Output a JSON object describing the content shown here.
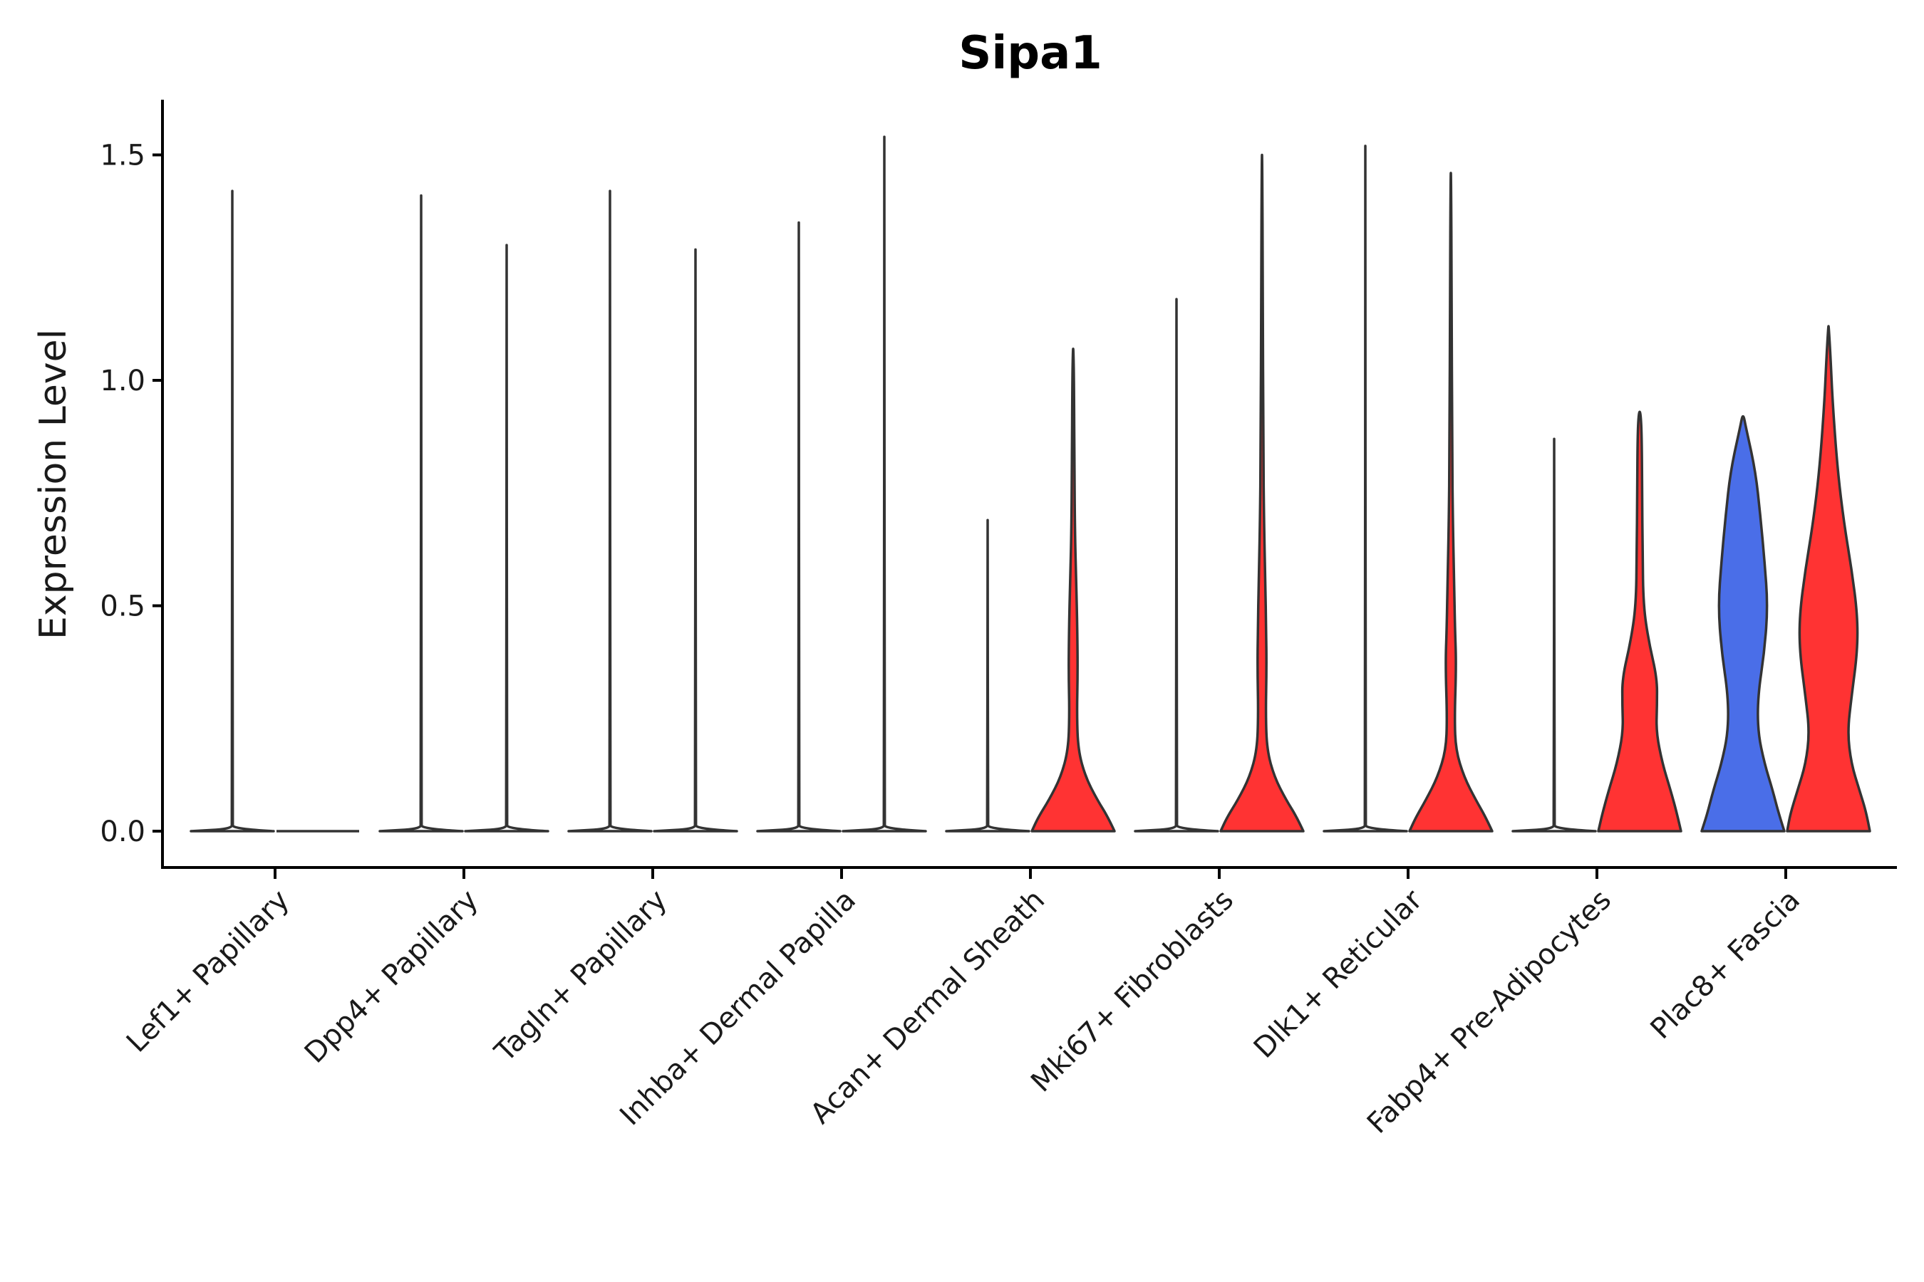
{
  "chart_data": {
    "type": "violin",
    "title": "Sipa1",
    "xlabel": "",
    "ylabel": "Expression Level",
    "ylim": [
      -0.08,
      1.62
    ],
    "yticks": [
      0.0,
      0.5,
      1.0,
      1.5
    ],
    "ytick_labels": [
      "0.0",
      "0.5",
      "1.0",
      "1.5"
    ],
    "colors": {
      "blue": "#4a6ee8",
      "red": "#ff3333",
      "outline": "#333333"
    },
    "categories": [
      "Lef1+ Papillary",
      "Dpp4+ Papillary",
      "Tagln+ Papillary",
      "Inhba+ Dermal Papilla",
      "Acan+ Dermal Sheath",
      "Mki67+ Fibroblasts",
      "Dlk1+ Reticular",
      "Fabp4+ Pre-Adipocytes",
      "Plac8+ Fascia"
    ],
    "groups": [
      "left",
      "right"
    ],
    "violins": [
      {
        "category": 0,
        "group": "left",
        "max": 1.42,
        "fill": "none",
        "profile": [
          [
            0,
            1
          ],
          [
            0.005,
            0.02
          ],
          [
            0.02,
            0.004
          ],
          [
            1.42,
            0.004
          ]
        ]
      },
      {
        "category": 0,
        "group": "right",
        "max": 0.0,
        "fill": "none",
        "profile": []
      },
      {
        "category": 1,
        "group": "left",
        "max": 1.41,
        "fill": "none",
        "profile": [
          [
            0,
            1
          ],
          [
            0.005,
            0.02
          ],
          [
            0.02,
            0.004
          ],
          [
            1.41,
            0.004
          ]
        ]
      },
      {
        "category": 1,
        "group": "right",
        "max": 1.3,
        "fill": "none",
        "profile": [
          [
            0,
            1
          ],
          [
            0.005,
            0.02
          ],
          [
            0.02,
            0.004
          ],
          [
            1.3,
            0.004
          ]
        ]
      },
      {
        "category": 2,
        "group": "left",
        "max": 1.42,
        "fill": "none",
        "profile": [
          [
            0,
            1
          ],
          [
            0.005,
            0.02
          ],
          [
            0.02,
            0.004
          ],
          [
            1.42,
            0.004
          ]
        ]
      },
      {
        "category": 2,
        "group": "right",
        "max": 1.29,
        "fill": "none",
        "profile": [
          [
            0,
            1
          ],
          [
            0.005,
            0.02
          ],
          [
            0.02,
            0.004
          ],
          [
            1.29,
            0.004
          ]
        ]
      },
      {
        "category": 3,
        "group": "left",
        "max": 1.35,
        "fill": "none",
        "profile": [
          [
            0,
            1
          ],
          [
            0.005,
            0.02
          ],
          [
            0.02,
            0.004
          ],
          [
            1.35,
            0.004
          ]
        ]
      },
      {
        "category": 3,
        "group": "right",
        "max": 1.54,
        "fill": "none",
        "profile": [
          [
            0,
            1
          ],
          [
            0.005,
            0.02
          ],
          [
            0.02,
            0.004
          ],
          [
            1.54,
            0.004
          ]
        ]
      },
      {
        "category": 4,
        "group": "left",
        "max": 0.69,
        "fill": "none",
        "profile": [
          [
            0,
            1
          ],
          [
            0.005,
            0.02
          ],
          [
            0.02,
            0.004
          ],
          [
            0.69,
            0.004
          ]
        ]
      },
      {
        "category": 4,
        "group": "right",
        "max": 1.07,
        "fill": "red",
        "profile": [
          [
            0,
            1
          ],
          [
            0.03,
            0.85
          ],
          [
            0.07,
            0.58
          ],
          [
            0.12,
            0.3
          ],
          [
            0.18,
            0.12
          ],
          [
            0.26,
            0.09
          ],
          [
            0.35,
            0.11
          ],
          [
            0.45,
            0.1
          ],
          [
            0.55,
            0.075
          ],
          [
            0.65,
            0.045
          ],
          [
            0.8,
            0.03
          ],
          [
            1.0,
            0.02
          ],
          [
            1.07,
            0.005
          ]
        ]
      },
      {
        "category": 5,
        "group": "left",
        "max": 1.18,
        "fill": "none",
        "profile": [
          [
            0,
            1
          ],
          [
            0.005,
            0.02
          ],
          [
            0.02,
            0.004
          ],
          [
            1.18,
            0.004
          ]
        ]
      },
      {
        "category": 5,
        "group": "right",
        "max": 1.5,
        "fill": "red",
        "profile": [
          [
            0,
            1
          ],
          [
            0.03,
            0.85
          ],
          [
            0.07,
            0.58
          ],
          [
            0.12,
            0.3
          ],
          [
            0.18,
            0.12
          ],
          [
            0.26,
            0.09
          ],
          [
            0.36,
            0.11
          ],
          [
            0.45,
            0.1
          ],
          [
            0.55,
            0.08
          ],
          [
            0.68,
            0.05
          ],
          [
            0.85,
            0.03
          ],
          [
            1.2,
            0.02
          ],
          [
            1.5,
            0.005
          ]
        ]
      },
      {
        "category": 6,
        "group": "left",
        "max": 1.52,
        "fill": "none",
        "profile": [
          [
            0,
            1
          ],
          [
            0.005,
            0.02
          ],
          [
            0.02,
            0.004
          ],
          [
            1.52,
            0.004
          ]
        ]
      },
      {
        "category": 6,
        "group": "right",
        "max": 1.46,
        "fill": "red",
        "profile": [
          [
            0,
            1
          ],
          [
            0.03,
            0.85
          ],
          [
            0.07,
            0.6
          ],
          [
            0.12,
            0.32
          ],
          [
            0.18,
            0.12
          ],
          [
            0.25,
            0.09
          ],
          [
            0.37,
            0.13
          ],
          [
            0.45,
            0.1
          ],
          [
            0.55,
            0.08
          ],
          [
            0.68,
            0.05
          ],
          [
            0.85,
            0.03
          ],
          [
            1.2,
            0.02
          ],
          [
            1.46,
            0.005
          ]
        ]
      },
      {
        "category": 7,
        "group": "left",
        "max": 0.87,
        "fill": "none",
        "profile": [
          [
            0,
            1
          ],
          [
            0.005,
            0.02
          ],
          [
            0.02,
            0.004
          ],
          [
            0.87,
            0.004
          ]
        ]
      },
      {
        "category": 7,
        "group": "right",
        "max": 0.93,
        "fill": "red",
        "profile": [
          [
            0,
            1
          ],
          [
            0.04,
            0.9
          ],
          [
            0.09,
            0.75
          ],
          [
            0.15,
            0.55
          ],
          [
            0.22,
            0.4
          ],
          [
            0.28,
            0.42
          ],
          [
            0.34,
            0.42
          ],
          [
            0.42,
            0.22
          ],
          [
            0.5,
            0.09
          ],
          [
            0.62,
            0.07
          ],
          [
            0.75,
            0.06
          ],
          [
            0.88,
            0.05
          ],
          [
            0.93,
            0.02
          ]
        ]
      },
      {
        "category": 8,
        "group": "left",
        "max": 0.92,
        "fill": "blue",
        "profile": [
          [
            0,
            1
          ],
          [
            0.04,
            0.86
          ],
          [
            0.09,
            0.72
          ],
          [
            0.15,
            0.52
          ],
          [
            0.22,
            0.36
          ],
          [
            0.3,
            0.36
          ],
          [
            0.4,
            0.52
          ],
          [
            0.5,
            0.6
          ],
          [
            0.6,
            0.52
          ],
          [
            0.7,
            0.42
          ],
          [
            0.8,
            0.3
          ],
          [
            0.9,
            0.06
          ],
          [
            0.92,
            0.02
          ]
        ]
      },
      {
        "category": 8,
        "group": "right",
        "max": 1.12,
        "fill": "red",
        "profile": [
          [
            0,
            1
          ],
          [
            0.04,
            0.92
          ],
          [
            0.09,
            0.75
          ],
          [
            0.15,
            0.55
          ],
          [
            0.22,
            0.46
          ],
          [
            0.3,
            0.56
          ],
          [
            0.4,
            0.7
          ],
          [
            0.48,
            0.7
          ],
          [
            0.58,
            0.56
          ],
          [
            0.68,
            0.38
          ],
          [
            0.8,
            0.22
          ],
          [
            0.95,
            0.1
          ],
          [
            1.05,
            0.05
          ],
          [
            1.12,
            0.005
          ]
        ]
      }
    ]
  }
}
